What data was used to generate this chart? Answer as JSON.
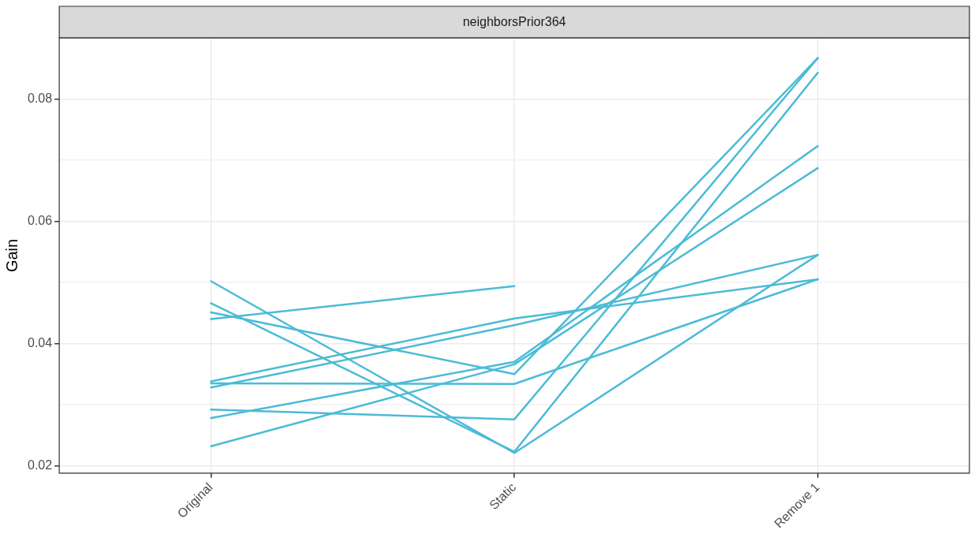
{
  "chart_data": {
    "type": "line",
    "title": "neighborsPrior364",
    "ylabel": "Gain",
    "categories": [
      "Original",
      "Static",
      "Remove 1"
    ],
    "series": [
      {
        "color": "#4bbbd6",
        "values": [
          0.0502,
          0.0221,
          0.0545
        ]
      },
      {
        "color": "#4bbbd6",
        "values": [
          0.0466,
          0.0223,
          0.0843
        ]
      },
      {
        "color": "#4bbbd6",
        "values": [
          0.0451,
          0.035,
          0.0867
        ]
      },
      {
        "color": "#4bbbd6",
        "values": [
          0.044,
          0.0494,
          null
        ]
      },
      {
        "color": "#4bbbd6",
        "values": [
          0.0338,
          0.0441,
          0.0505
        ]
      },
      {
        "color": "#4bbbd6",
        "values": [
          0.0335,
          0.0334,
          0.0505
        ]
      },
      {
        "color": "#4bbbd6",
        "values": [
          0.0328,
          0.043,
          0.0545
        ]
      },
      {
        "color": "#4bbbd6",
        "values": [
          0.0292,
          0.0276,
          0.0867
        ]
      },
      {
        "color": "#4bbbd6",
        "values": [
          0.0278,
          0.037,
          0.0723
        ]
      },
      {
        "color": "#4bbbd6",
        "values": [
          0.0232,
          0.0366,
          0.0687
        ]
      }
    ],
    "ylim": [
      0.0188,
      0.09
    ],
    "yticks": [
      0.02,
      {
        "value": 0.03,
        "label": null
      },
      0.04,
      {
        "value": 0.05,
        "label": null
      },
      0.06,
      {
        "value": 0.07,
        "label": null
      },
      0.08,
      {
        "value": 0.09,
        "label": null
      }
    ],
    "grid": true,
    "legend": false,
    "marker": "none",
    "line_style": "solid"
  }
}
